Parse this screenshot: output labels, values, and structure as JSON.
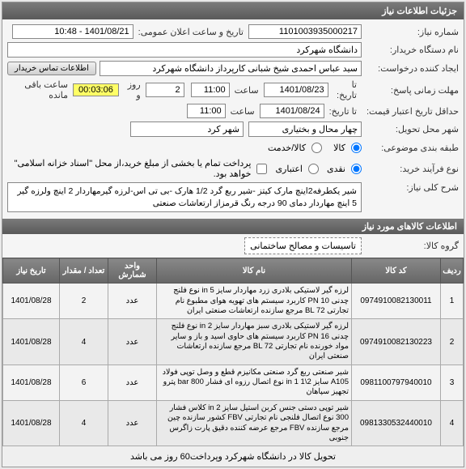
{
  "panel_title": "جزئیات اطلاعات نیاز",
  "fields": {
    "need_no_label": "شماره نیاز:",
    "need_no": "1101003935000217",
    "announce_label": "تاریخ و ساعت اعلان عمومی:",
    "announce": "1401/08/21 - 10:48",
    "buyer_org_label": "نام دستگاه خریدار:",
    "buyer_org": "دانشگاه شهرکرد",
    "requester_label": "ایجاد کننده درخواست:",
    "requester": "سید عباس احمدی شیخ شبانی کارپرداز دانشگاه شهرکرد",
    "btn_contact": "اطلاعات تماس خریدار",
    "deadline_label": "مهلت زمانی پاسخ:",
    "deadline_until": "تا تاریخ:",
    "deadline_date": "1401/08/23",
    "deadline_time_label": "ساعت",
    "deadline_time": "11:00",
    "days_box": "2",
    "days_suffix": "روز و",
    "counter": "00:03:06",
    "counter_suffix": "ساعت باقی مانده",
    "validity_label": "حداقل تاریخ اعتبار قیمت:",
    "validity_until": "تا تاریخ:",
    "validity_date": "1401/08/24",
    "validity_time_label": "ساعت",
    "validity_time": "11:00",
    "city_label": "شهر محل تحویل:",
    "city_state": "چهار محال و بختیاری",
    "city_city": "شهر کرد",
    "class_label": "طبقه بندی موضوعی:",
    "class_radio1": "کالا",
    "class_radio2": "کالا/خدمت",
    "buytype_label": "نوع فرآیند خرید:",
    "buytype_r1": "نقدی",
    "buytype_r2": "اعتباری",
    "buynote": "پرداخت تمام یا بخشی از مبلغ خرید،از محل \"اسناد خزانه اسلامی\" خواهد بود.",
    "desc_label": "شرح کلی نیاز:",
    "desc_text": "شیر یکطرفه2اینچ مارک کیتز -شیر ربع گرد 1/2 هارک -بی تی اس-لرزه گیرمهاردار 2 اینچ ولرزه گیر 5 اینچ مهاردار دمای 90 درجه رنگ قرمزاز ارتعاشات صنعتی"
  },
  "items_header": "اطلاعات کالاهای مورد نیاز",
  "group_label": "گروه کالا:",
  "group_value": "تاسیسات و مصالح ساختمانی",
  "table": {
    "cols": [
      "ردیف",
      "کد کالا",
      "نام کالا",
      "واحد شمارش",
      "تعداد / مقدار",
      "تاریخ نیاز"
    ],
    "rows": [
      {
        "idx": "1",
        "code": "0974910082130011",
        "name": "لرزه گیر لاستیکی بلادری زرد مهاردار سایز in 5 نوع فلنج چدنی PN 10 کاربرد سیستم های تهویه هوای مطبوع نام تجارتی BL 72 مرجع سازنده ارتعاشات صنعتی ایران",
        "unit": "عدد",
        "qty": "2",
        "date": "1401/08/28"
      },
      {
        "idx": "2",
        "code": "0974910082130223",
        "name": "لرزه گیر لاستیکی بلادری سبز مهاردار سایز in 2 نوع فلنج چدنی PN 16 کاربرد سیستم های حاوی اسید و باز و سایر مواد خورنده نام تجارتی BL 72 مرجع سازنده ارتعاشات صنعتی ایران",
        "unit": "عدد",
        "qty": "4",
        "date": "1401/08/28"
      },
      {
        "idx": "3",
        "code": "0981100797940010",
        "name": "شیر صنعتی ربع گرد صنعتی مکانیزم قطع و وصل توپی فولاد A105 سایز 2\\1 1 in نوع اتصال رزوه ای فشار 800 bar پترو تجهیز سپاهان",
        "unit": "عدد",
        "qty": "6",
        "date": "1401/08/28"
      },
      {
        "idx": "4",
        "code": "0981330532440010",
        "name": "شیر توپی دستی جنس کربن استیل سایز in 2 کلاس فشار 300 نوع اتصال فلنجی نام تجارتی FBV کشور سازنده چین مرجع سازنده FBV مرجع عرضه کننده دقیق پارت زاگرس جنوبی",
        "unit": "عدد",
        "qty": "4",
        "date": "1401/08/28"
      }
    ]
  },
  "footer": "تحویل کالا در دانشگاه شهرکرد وپرداخت60 روز می باشد",
  "colors": {
    "header_bg": "#6a6a6a",
    "counter_bg": "#ffff66"
  }
}
